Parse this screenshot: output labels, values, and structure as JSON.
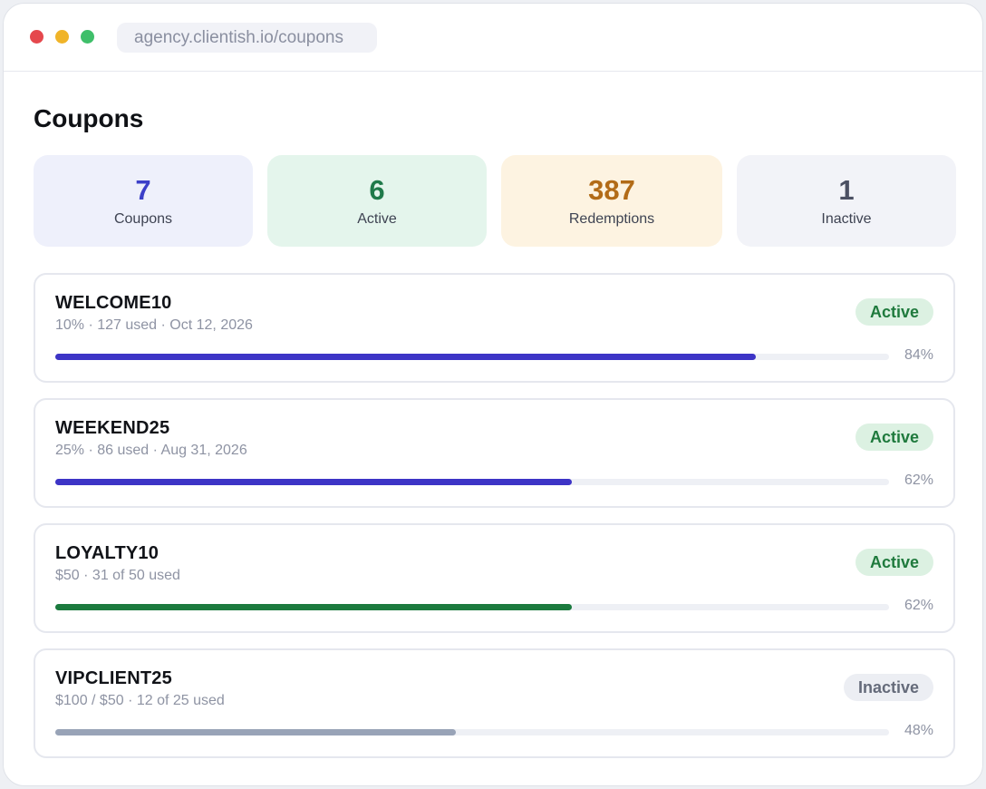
{
  "window": {
    "url": "agency.clientish.io/coupons"
  },
  "page": {
    "title": "Coupons"
  },
  "stats": [
    {
      "value": "7",
      "label": "Coupons",
      "bg": "#eef0fb",
      "color": "#3b3fc8"
    },
    {
      "value": "6",
      "label": "Active",
      "bg": "#e4f5ec",
      "color": "#1f7a4a"
    },
    {
      "value": "387",
      "label": "Redemptions",
      "bg": "#fdf3e1",
      "color": "#b26b17"
    },
    {
      "value": "1",
      "label": "Inactive",
      "bg": "#f2f3f8",
      "color": "#4b5063"
    }
  ],
  "coupons": [
    {
      "code": "WELCOME10",
      "meta": "10% · 127 used · Oct 12, 2026",
      "status": "Active",
      "status_key": "active",
      "progress": 0.84,
      "percent_label": "84%",
      "bar_color": "#3d34c6"
    },
    {
      "code": "WEEKEND25",
      "meta": "25% · 86 used · Aug 31, 2026",
      "status": "Active",
      "status_key": "active",
      "progress": 0.62,
      "percent_label": "62%",
      "bar_color": "#3d34c6"
    },
    {
      "code": "LOYALTY10",
      "meta": "$50 · 31 of 50 used",
      "status": "Active",
      "status_key": "active",
      "progress": 0.62,
      "percent_label": "62%",
      "bar_color": "#1b7a3e"
    },
    {
      "code": "VIPCLIENT25",
      "meta": "$100 / $50 · 12 of 25 used",
      "status": "Inactive",
      "status_key": "inactive",
      "progress": 0.48,
      "percent_label": "48%",
      "bar_color": "#98a3b7"
    }
  ]
}
